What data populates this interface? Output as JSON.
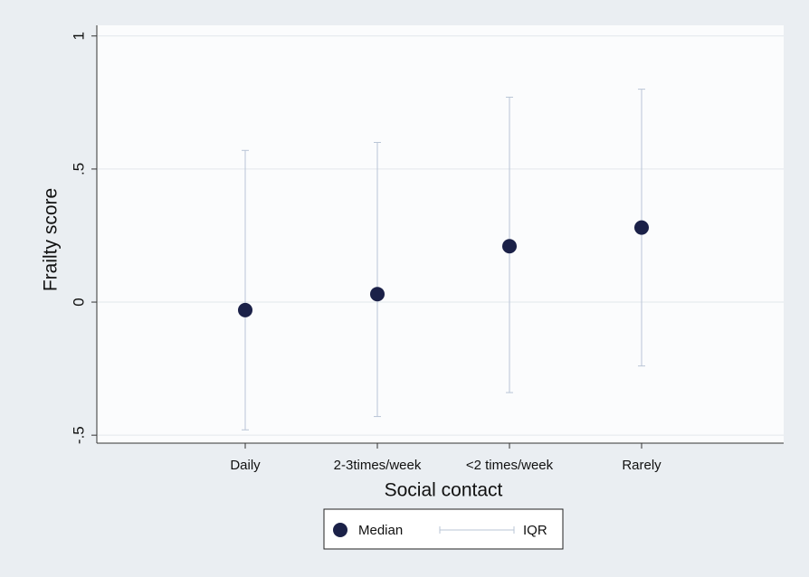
{
  "chart_data": {
    "type": "dot_range",
    "xlabel": "Social contact",
    "ylabel": "Frailty score",
    "categories": [
      "Daily",
      "2-3times/week",
      "<2 times/week",
      "Rarely"
    ],
    "series": [
      {
        "name": "Median",
        "color": "#1b2148",
        "values": [
          -0.03,
          0.03,
          0.21,
          0.28
        ]
      },
      {
        "name": "IQR",
        "color": "#b9c5d6",
        "low": [
          -0.48,
          -0.43,
          -0.34,
          -0.24
        ],
        "high": [
          0.57,
          0.6,
          0.77,
          0.8
        ]
      }
    ],
    "ylim": [
      -0.53,
      1.04
    ],
    "yticks": [
      {
        "value": -0.5,
        "label": "-.5"
      },
      0,
      {
        "value": 0.5,
        "label": ".5"
      },
      1
    ],
    "grid": true,
    "legend": "bottom"
  }
}
